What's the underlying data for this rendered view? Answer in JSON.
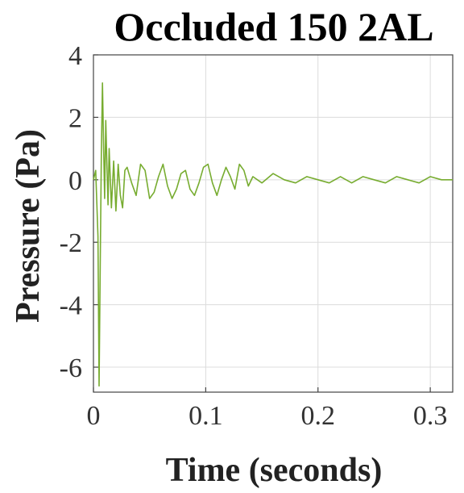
{
  "chart_data": {
    "type": "line",
    "title": "Occluded 150 2AL",
    "xlabel": "Time (seconds)",
    "ylabel": "Pressure (Pa)",
    "xlim": [
      0,
      0.32
    ],
    "ylim": [
      -6.8,
      4
    ],
    "xticks": [
      0,
      0.1,
      0.2,
      0.3
    ],
    "xtick_labels": [
      "0",
      "0.1",
      "0.2",
      "0.3"
    ],
    "yticks": [
      -6,
      -4,
      -2,
      0,
      2,
      4
    ],
    "ytick_labels": [
      "-6",
      "-4",
      "-2",
      "0",
      "2",
      "4"
    ],
    "grid": true,
    "line_color": "#77ac30",
    "series": [
      {
        "x": [
          0,
          0.002,
          0.004,
          0.005,
          0.006,
          0.007,
          0.008,
          0.009,
          0.01,
          0.011,
          0.012,
          0.013,
          0.014,
          0.016,
          0.018,
          0.02,
          0.022,
          0.024,
          0.026,
          0.028,
          0.03,
          0.034,
          0.038,
          0.042,
          0.046,
          0.05,
          0.054,
          0.058,
          0.062,
          0.066,
          0.07,
          0.074,
          0.078,
          0.082,
          0.086,
          0.09,
          0.094,
          0.098,
          0.102,
          0.106,
          0.11,
          0.114,
          0.118,
          0.122,
          0.126,
          0.13,
          0.134,
          0.138,
          0.142,
          0.15,
          0.16,
          0.17,
          0.18,
          0.19,
          0.2,
          0.21,
          0.22,
          0.23,
          0.24,
          0.25,
          0.26,
          0.27,
          0.28,
          0.29,
          0.3,
          0.31,
          0.32
        ],
        "values": [
          0.0,
          0.3,
          -1.8,
          -6.6,
          -2.8,
          0.8,
          3.1,
          1.2,
          -0.6,
          1.9,
          0.5,
          -0.8,
          1.0,
          -0.9,
          0.6,
          -1.0,
          0.5,
          -0.5,
          -0.9,
          0.3,
          0.4,
          -0.1,
          -0.5,
          0.5,
          0.3,
          -0.6,
          -0.4,
          0.1,
          0.5,
          -0.2,
          -0.6,
          -0.3,
          0.2,
          0.3,
          -0.3,
          -0.5,
          -0.1,
          0.4,
          0.5,
          -0.1,
          -0.5,
          0.0,
          0.4,
          0.1,
          -0.3,
          0.5,
          0.3,
          -0.2,
          0.1,
          -0.1,
          0.2,
          0.0,
          -0.1,
          0.1,
          0.0,
          -0.1,
          0.1,
          -0.1,
          0.1,
          0.0,
          -0.1,
          0.1,
          0.0,
          -0.1,
          0.1,
          0.0,
          0.0
        ]
      }
    ]
  }
}
